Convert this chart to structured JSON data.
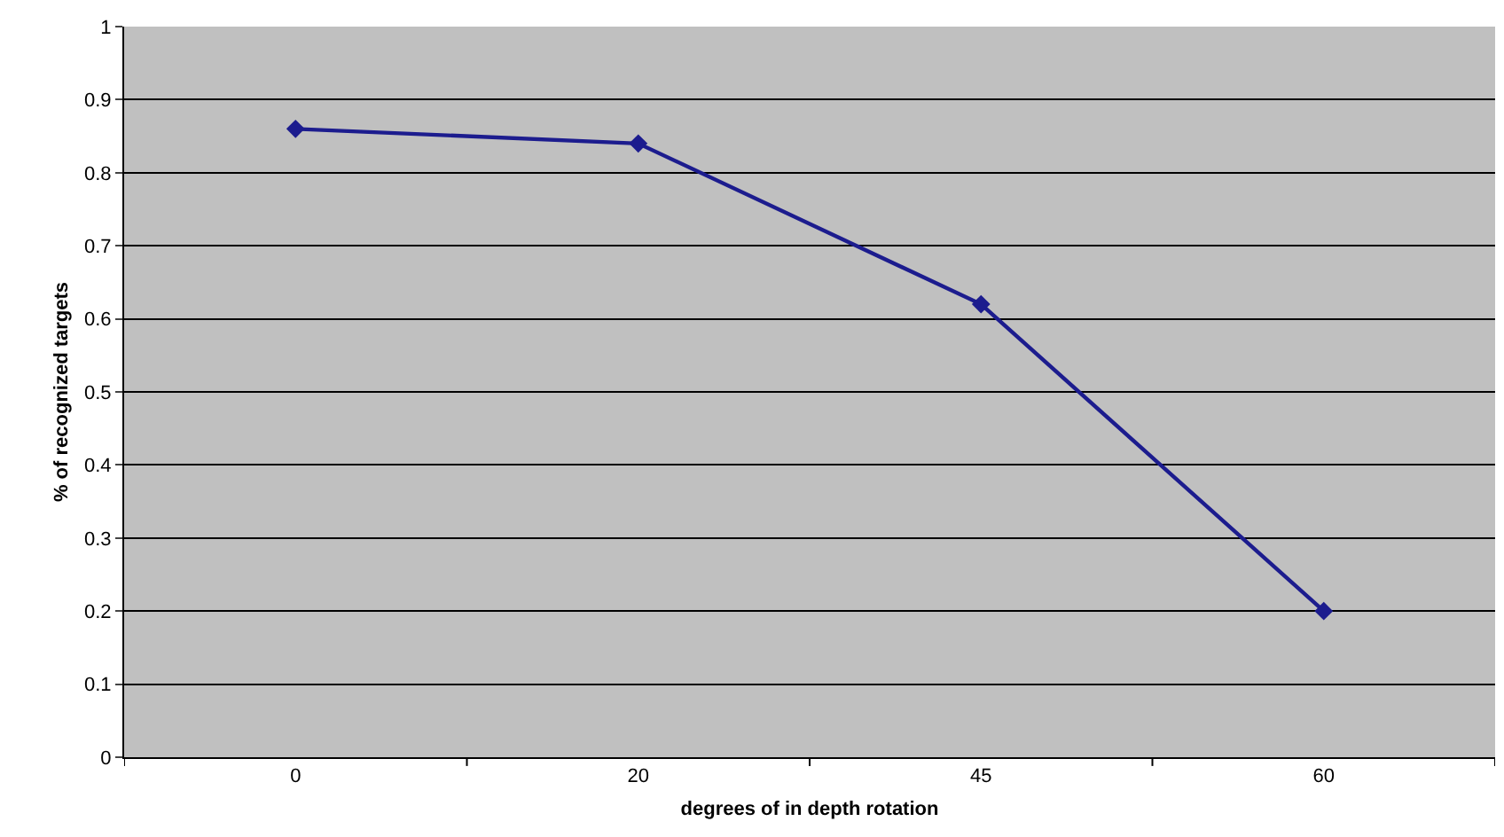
{
  "chart_data": {
    "type": "line",
    "xlabel": "degrees of in depth rotation",
    "ylabel": "% of recognized targets",
    "categories": [
      "0",
      "20",
      "45",
      "60"
    ],
    "series": [
      {
        "color": "#1c1c8e",
        "values": [
          0.86,
          0.84,
          0.62,
          0.2
        ]
      }
    ],
    "ylim": [
      0,
      1
    ],
    "yticks": [
      0,
      0.1,
      0.2,
      0.3,
      0.4,
      0.5,
      0.6,
      0.7,
      0.8,
      0.9,
      1
    ],
    "grid": "y",
    "marker": "diamond",
    "line_style": "solid"
  }
}
